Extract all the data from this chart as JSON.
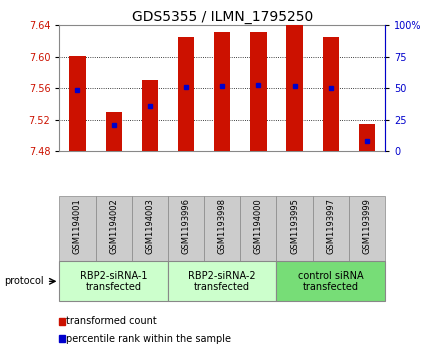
{
  "title": "GDS5355 / ILMN_1795250",
  "samples": [
    "GSM1194001",
    "GSM1194002",
    "GSM1194003",
    "GSM1193996",
    "GSM1193998",
    "GSM1194000",
    "GSM1193995",
    "GSM1193997",
    "GSM1193999"
  ],
  "bar_tops": [
    7.601,
    7.53,
    7.57,
    7.625,
    7.632,
    7.632,
    7.64,
    7.625,
    7.514
  ],
  "bar_base": 7.48,
  "percentile_values": [
    7.558,
    7.513,
    7.538,
    7.562,
    7.563,
    7.564,
    7.563,
    7.56,
    7.493
  ],
  "ylim": [
    7.48,
    7.64
  ],
  "yticks": [
    7.48,
    7.52,
    7.56,
    7.6,
    7.64
  ],
  "right_yticks": [
    0,
    25,
    50,
    75,
    100
  ],
  "right_ylim": [
    0,
    100
  ],
  "bar_color": "#CC1100",
  "percentile_color": "#0000CC",
  "groups": [
    {
      "label": "RBP2-siRNA-1\ntransfected",
      "indices": [
        0,
        1,
        2
      ],
      "color": "#ccffcc"
    },
    {
      "label": "RBP2-siRNA-2\ntransfected",
      "indices": [
        3,
        4,
        5
      ],
      "color": "#ccffcc"
    },
    {
      "label": "control siRNA\ntransfected",
      "indices": [
        6,
        7,
        8
      ],
      "color": "#77dd77"
    }
  ],
  "protocol_label": "protocol",
  "legend_items": [
    {
      "color": "#CC1100",
      "label": "transformed count"
    },
    {
      "color": "#0000CC",
      "label": "percentile rank within the sample"
    }
  ],
  "background_color": "#ffffff",
  "tick_bg": "#cccccc",
  "title_fontsize": 10,
  "tick_fontsize": 7,
  "bar_width": 0.45
}
